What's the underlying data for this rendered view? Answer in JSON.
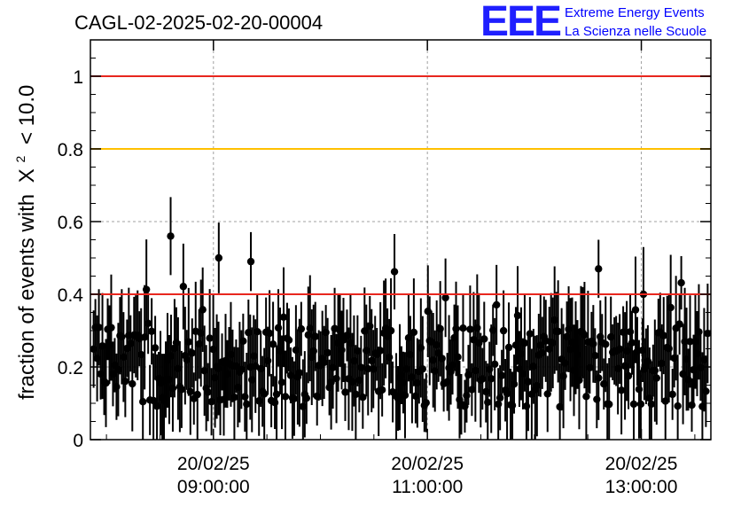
{
  "title": "CAGL-02-2025-02-20-00004",
  "logo": {
    "mark": "EEE",
    "line1": "Extreme Energy Events",
    "line2": "La Scienza nelle Scuole"
  },
  "colors": {
    "red_line": "#e8261e",
    "yellow_line": "#ffc000",
    "points": "#000000",
    "grid": "#a0a0a0",
    "logo": "#0000ff"
  },
  "chart_data": {
    "type": "scatter",
    "title": "CAGL-02-2025-02-20-00004",
    "xlabel": "",
    "ylabel_prefix": "fraction of events with",
    "ylabel_symbol": "X",
    "ylabel_sup": "2",
    "ylabel_suffix": "< 10.0",
    "x_ticks": [
      {
        "date": "20/02/25",
        "time": "09:00:00"
      },
      {
        "date": "20/02/25",
        "time": "11:00:00"
      },
      {
        "date": "20/02/25",
        "time": "13:00:00"
      }
    ],
    "x_range_hours": [
      7.05,
      12.85
    ],
    "x_tick_hours": [
      8.2,
      10.2,
      12.2
    ],
    "y_ticks": [
      "0",
      "0.2",
      "0.4",
      "0.6",
      "0.8",
      "1"
    ],
    "ylim": [
      0,
      1.1
    ],
    "grid": true,
    "reference_lines": [
      {
        "y": 1.0,
        "color": "#e8261e"
      },
      {
        "y": 0.8,
        "color": "#ffc000"
      },
      {
        "y": 0.4,
        "color": "#e8261e"
      }
    ],
    "point_count": 350,
    "typical_error": 0.1,
    "notable_points": [
      {
        "x": 7.8,
        "y": 0.56
      },
      {
        "x": 8.25,
        "y": 0.5
      },
      {
        "x": 8.55,
        "y": 0.49
      },
      {
        "x": 11.8,
        "y": 0.47
      },
      {
        "x": 12.22,
        "y": 0.4
      }
    ]
  }
}
